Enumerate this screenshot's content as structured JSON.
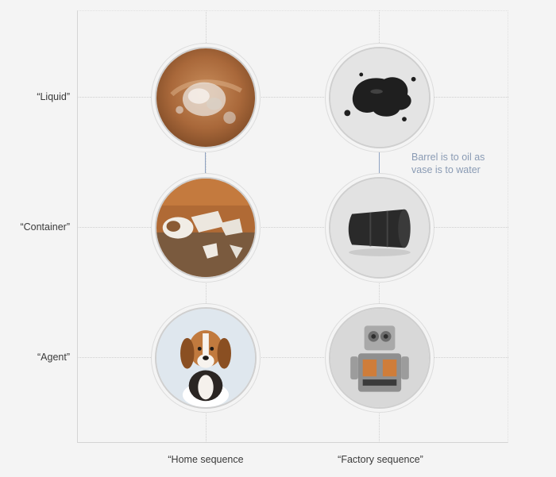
{
  "rows": {
    "liquid": "“Liquid”",
    "container": "“Container”",
    "agent": "“Agent”"
  },
  "columns": {
    "home": "“Home sequence",
    "factory": "“Factory sequence”"
  },
  "annotation": "Barrel is to oil as vase is to water",
  "images": {
    "home_liquid": "water-splash-image",
    "home_container": "broken-vase-image",
    "home_agent": "beagle-puppy-image",
    "factory_liquid": "oil-spill-image",
    "factory_container": "oil-barrel-image",
    "factory_agent": "toy-robot-image"
  },
  "colors": {
    "arrow": "#8fa3c2",
    "annotation": "#8a9bb4"
  }
}
